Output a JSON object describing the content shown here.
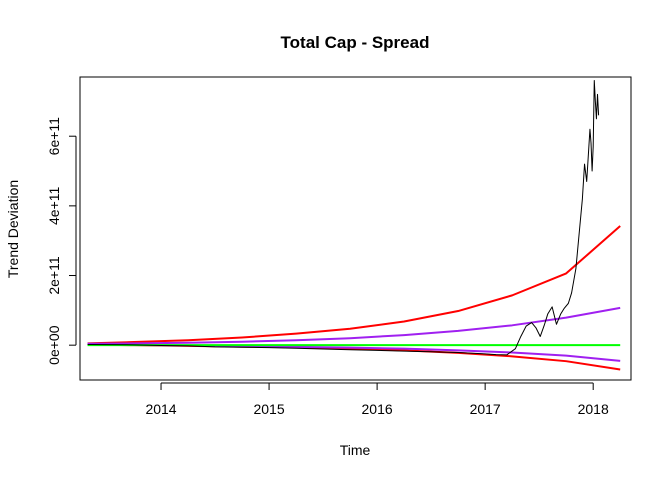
{
  "chart_data": {
    "type": "line",
    "title": "Total Cap - Spread",
    "xlabel": "Time",
    "ylabel": "Trend Deviation",
    "xlim": [
      2013.25,
      2018.35
    ],
    "ylim": [
      -100000000000.0,
      770000000000.0
    ],
    "x_ticks": [
      2014,
      2015,
      2016,
      2017,
      2018
    ],
    "x_tick_labels": [
      "2014",
      "2015",
      "2016",
      "2017",
      "2018"
    ],
    "y_ticks": [
      0,
      200000000000.0,
      400000000000.0,
      600000000000.0
    ],
    "y_tick_labels": [
      "0e+00",
      "2e+11",
      "4e+11",
      "6e+11"
    ],
    "grid": false,
    "legend": "none",
    "series": [
      {
        "color": "#000000",
        "width": 1,
        "x": [
          2013.32,
          2013.5,
          2013.75,
          2014.0,
          2014.25,
          2014.5,
          2014.75,
          2015.0,
          2015.25,
          2015.5,
          2015.75,
          2016.0,
          2016.25,
          2016.5,
          2016.75,
          2017.0,
          2017.1,
          2017.2,
          2017.28,
          2017.33,
          2017.38,
          2017.43,
          2017.47,
          2017.51,
          2017.55,
          2017.58,
          2017.62,
          2017.66,
          2017.7,
          2017.73,
          2017.77,
          2017.8,
          2017.84,
          2017.87,
          2017.9,
          2017.92,
          2017.94,
          2017.96,
          2017.97,
          2017.98,
          2017.99,
          2018.0,
          2018.01,
          2018.02,
          2018.03,
          2018.04,
          2018.05
        ],
        "y": [
          2000000000.0,
          1500000000.0,
          1000000000.0,
          -1000000000.0,
          -2000000000.0,
          -5000000000.0,
          -6000000000.0,
          -7000000000.0,
          -9000000000.0,
          -11000000000.0,
          -13000000000.0,
          -15000000000.0,
          -17000000000.0,
          -19000000000.0,
          -21000000000.0,
          -25000000000.0,
          -27000000000.0,
          -28000000000.0,
          -10000000000.0,
          25000000000.0,
          55000000000.0,
          65000000000.0,
          50000000000.0,
          25000000000.0,
          60000000000.0,
          90000000000.0,
          110000000000.0,
          60000000000.0,
          90000000000.0,
          105000000000.0,
          120000000000.0,
          150000000000.0,
          220000000000.0,
          320000000000.0,
          420000000000.0,
          520000000000.0,
          470000000000.0,
          570000000000.0,
          620000000000.0,
          580000000000.0,
          500000000000.0,
          570000000000.0,
          760000000000.0,
          700000000000.0,
          650000000000.0,
          720000000000.0,
          660000000000.0
        ]
      },
      {
        "color": "#ff0000",
        "width": 2,
        "x": [
          2013.32,
          2013.75,
          2014.25,
          2014.75,
          2015.25,
          2015.75,
          2016.25,
          2016.75,
          2017.25,
          2017.75,
          2018.25
        ],
        "y": [
          5000000000.0,
          9000000000.0,
          14000000000.0,
          22000000000.0,
          33000000000.0,
          47000000000.0,
          68000000000.0,
          98000000000.0,
          143000000000.0,
          206000000000.0,
          342000000000.0
        ]
      },
      {
        "color": "#ff0000",
        "width": 2,
        "x": [
          2013.32,
          2013.75,
          2014.25,
          2014.75,
          2015.25,
          2015.75,
          2016.25,
          2016.75,
          2017.25,
          2017.75,
          2018.25
        ],
        "y": [
          2000000000.0,
          0,
          -2000000000.0,
          -4000000000.0,
          -6000000000.0,
          -10000000000.0,
          -15000000000.0,
          -22000000000.0,
          -32000000000.0,
          -46000000000.0,
          -70000000000.0
        ]
      },
      {
        "color": "#a020f0",
        "width": 2,
        "x": [
          2013.32,
          2013.75,
          2014.25,
          2014.75,
          2015.25,
          2015.75,
          2016.25,
          2016.75,
          2017.25,
          2017.75,
          2018.25
        ],
        "y": [
          4000000000.0,
          5000000000.0,
          7000000000.0,
          10000000000.0,
          14000000000.0,
          20000000000.0,
          29000000000.0,
          41000000000.0,
          57000000000.0,
          79000000000.0,
          107000000000.0
        ]
      },
      {
        "color": "#a020f0",
        "width": 2,
        "x": [
          2013.32,
          2013.75,
          2014.25,
          2014.75,
          2015.25,
          2015.75,
          2016.25,
          2016.75,
          2017.25,
          2017.75,
          2018.25
        ],
        "y": [
          2000000000.0,
          1000000000.0,
          -1000000000.0,
          -3000000000.0,
          -5000000000.0,
          -7000000000.0,
          -10000000000.0,
          -15000000000.0,
          -21000000000.0,
          -30000000000.0,
          -45000000000.0
        ]
      },
      {
        "color": "#00ff00",
        "width": 2,
        "x": [
          2013.32,
          2018.25
        ],
        "y": [
          0,
          0
        ]
      }
    ]
  }
}
